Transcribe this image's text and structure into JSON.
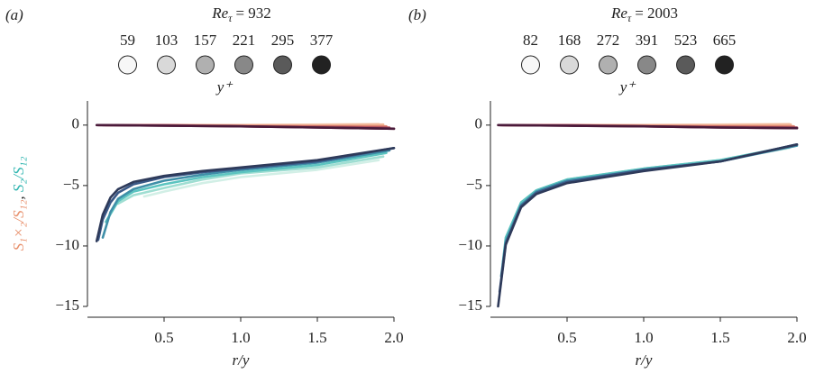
{
  "chart_data": [
    {
      "type": "line",
      "panel_label": "(a)",
      "title": {
        "symbol": "Re",
        "subscript": "τ",
        "text": "= 932"
      },
      "legend_title": "y⁺",
      "x_label": "r/y",
      "y_label": [
        {
          "text": "S₁×₂/S₁₂",
          "color": "#e8906c"
        },
        {
          "text": ", ",
          "color": "#222222"
        },
        {
          "text": "S₂/S₁₂",
          "color": "#2fb5b0"
        }
      ],
      "xlim": [
        0,
        2
      ],
      "ylim": [
        -15,
        2
      ],
      "xticks": [
        0.5,
        {
          "value": 1,
          "label": "1.0"
        },
        1.5,
        {
          "value": 2,
          "label": "2.0"
        }
      ],
      "yticks": [
        0,
        {
          "value": -5,
          "label": "−5"
        },
        {
          "value": -10,
          "label": "−10"
        },
        {
          "value": -15,
          "label": "−15"
        }
      ],
      "series": [
        {
          "name": "59",
          "color": "#f7f7f7",
          "lines": [
            {
              "color": "#f8d8c4",
              "x": [
                0.37,
                0.5,
                1.0,
                1.5,
                1.9
              ],
              "values": [
                0.0,
                0.0,
                0.0,
                0.05,
                0.1
              ]
            },
            {
              "color": "#d2efe6",
              "x": [
                0.37,
                0.5,
                0.75,
                1.0,
                1.5,
                1.9
              ],
              "values": [
                -5.9,
                -5.5,
                -4.8,
                -4.3,
                -3.7,
                -2.9
              ]
            }
          ]
        },
        {
          "name": "103",
          "color": "#d9d9d9",
          "lines": [
            {
              "color": "#f2b697",
              "x": [
                0.2,
                0.5,
                1.0,
                1.5,
                1.93
              ],
              "values": [
                0.0,
                0.0,
                0.0,
                0.0,
                0.05
              ]
            },
            {
              "color": "#9fded2",
              "x": [
                0.2,
                0.3,
                0.5,
                0.75,
                1.0,
                1.5,
                1.93
              ],
              "values": [
                -6.5,
                -5.8,
                -5.2,
                -4.5,
                -4.0,
                -3.5,
                -2.6
              ]
            }
          ]
        },
        {
          "name": "157",
          "color": "#b0b0b0",
          "lines": [
            {
              "color": "#de8670",
              "x": [
                0.12,
                0.5,
                1.0,
                1.5,
                1.95
              ],
              "values": [
                0.0,
                0.0,
                -0.05,
                -0.1,
                -0.1
              ]
            },
            {
              "color": "#5cc4c0",
              "x": [
                0.12,
                0.2,
                0.3,
                0.5,
                0.75,
                1.0,
                1.5,
                1.95
              ],
              "values": [
                -8.0,
                -6.3,
                -5.5,
                -4.9,
                -4.3,
                -3.9,
                -3.3,
                -2.3
              ]
            }
          ]
        },
        {
          "name": "221",
          "color": "#888888",
          "lines": [
            {
              "color": "#b4525e",
              "x": [
                0.1,
                0.5,
                1.0,
                1.5,
                1.97
              ],
              "values": [
                0.0,
                0.0,
                -0.1,
                -0.15,
                -0.2
              ]
            },
            {
              "color": "#3f8fa8",
              "x": [
                0.1,
                0.15,
                0.2,
                0.3,
                0.5,
                0.75,
                1.0,
                1.5,
                1.97
              ],
              "values": [
                -9.3,
                -7.2,
                -6.1,
                -5.3,
                -4.6,
                -4.1,
                -3.7,
                -3.1,
                -2.1
              ]
            }
          ]
        },
        {
          "name": "295",
          "color": "#5a5a5a",
          "lines": [
            {
              "color": "#7d3050",
              "x": [
                0.07,
                0.5,
                1.0,
                1.5,
                2.0
              ],
              "values": [
                0.0,
                -0.05,
                -0.1,
                -0.2,
                -0.3
              ]
            },
            {
              "color": "#3a5886",
              "x": [
                0.07,
                0.1,
                0.15,
                0.2,
                0.3,
                0.5,
                0.75,
                1.0,
                1.5,
                2.0
              ],
              "values": [
                -9.5,
                -7.8,
                -6.4,
                -5.6,
                -4.9,
                -4.3,
                -3.9,
                -3.6,
                -3.0,
                -1.9
              ]
            }
          ]
        },
        {
          "name": "377",
          "color": "#222222",
          "lines": [
            {
              "color": "#4a1a3a",
              "x": [
                0.06,
                0.5,
                1.0,
                1.5,
                2.0
              ],
              "values": [
                0.0,
                -0.05,
                -0.1,
                -0.2,
                -0.3
              ]
            },
            {
              "color": "#2e3a5a",
              "x": [
                0.06,
                0.1,
                0.15,
                0.2,
                0.3,
                0.5,
                0.75,
                1.0,
                1.5,
                2.0
              ],
              "values": [
                -9.6,
                -7.4,
                -6.0,
                -5.3,
                -4.7,
                -4.2,
                -3.8,
                -3.5,
                -2.9,
                -1.9
              ]
            }
          ]
        }
      ]
    },
    {
      "type": "line",
      "panel_label": "(b)",
      "title": {
        "symbol": "Re",
        "subscript": "τ",
        "text": "= 2003"
      },
      "legend_title": "y⁺",
      "x_label": "r/y",
      "xlim": [
        0,
        2
      ],
      "ylim": [
        -15,
        2
      ],
      "xticks": [
        0.5,
        {
          "value": 1,
          "label": "1.0"
        },
        1.5,
        {
          "value": 2,
          "label": "2.0"
        }
      ],
      "yticks": [
        0,
        {
          "value": -5,
          "label": "−5"
        },
        {
          "value": -10,
          "label": "−10"
        },
        {
          "value": -15,
          "label": "−15"
        }
      ],
      "series": [
        {
          "name": "82",
          "color": "#f7f7f7",
          "lines": [
            {
              "color": "#f8d8c4",
              "x": [
                0.12,
                0.5,
                1.0,
                1.5,
                1.95
              ],
              "values": [
                0.0,
                0.0,
                0.0,
                0.05,
                0.1
              ]
            },
            {
              "color": "#d2efe6",
              "x": [
                0.12,
                0.2,
                0.3,
                0.5,
                1.0,
                1.5,
                1.95
              ],
              "values": [
                -9.0,
                -6.4,
                -5.4,
                -4.5,
                -3.6,
                -2.9,
                -1.9
              ]
            }
          ]
        },
        {
          "name": "168",
          "color": "#d9d9d9",
          "lines": [
            {
              "color": "#f2b697",
              "x": [
                0.1,
                0.5,
                1.0,
                1.5,
                1.96
              ],
              "values": [
                0.0,
                0.0,
                0.0,
                0.0,
                0.05
              ]
            },
            {
              "color": "#9fded2",
              "x": [
                0.1,
                0.2,
                0.3,
                0.5,
                1.0,
                1.5,
                1.96
              ],
              "values": [
                -9.5,
                -6.4,
                -5.4,
                -4.5,
                -3.6,
                -2.9,
                -1.8
              ]
            }
          ]
        },
        {
          "name": "272",
          "color": "#b0b0b0",
          "lines": [
            {
              "color": "#de8670",
              "x": [
                0.08,
                0.5,
                1.0,
                1.5,
                1.98
              ],
              "values": [
                0.0,
                0.0,
                -0.05,
                -0.1,
                -0.1
              ]
            },
            {
              "color": "#5cc4c0",
              "x": [
                0.08,
                0.1,
                0.2,
                0.3,
                0.5,
                1.0,
                1.5,
                1.98
              ],
              "values": [
                -11.5,
                -9.3,
                -6.4,
                -5.4,
                -4.5,
                -3.6,
                -2.9,
                -1.7
              ]
            }
          ]
        },
        {
          "name": "391",
          "color": "#888888",
          "lines": [
            {
              "color": "#b4525e",
              "x": [
                0.07,
                0.5,
                1.0,
                1.5,
                2.0
              ],
              "values": [
                0.0,
                0.0,
                -0.1,
                -0.15,
                -0.2
              ]
            },
            {
              "color": "#3f8fa8",
              "x": [
                0.07,
                0.1,
                0.2,
                0.3,
                0.5,
                1.0,
                1.5,
                2.0
              ],
              "values": [
                -12.5,
                -9.6,
                -6.6,
                -5.5,
                -4.6,
                -3.7,
                -3.0,
                -1.7
              ]
            }
          ]
        },
        {
          "name": "523",
          "color": "#5a5a5a",
          "lines": [
            {
              "color": "#7d3050",
              "x": [
                0.06,
                0.5,
                1.0,
                1.5,
                2.0
              ],
              "values": [
                0.0,
                -0.05,
                -0.1,
                -0.2,
                -0.25
              ]
            },
            {
              "color": "#3a5886",
              "x": [
                0.06,
                0.1,
                0.2,
                0.3,
                0.5,
                1.0,
                1.5,
                2.0
              ],
              "values": [
                -13.8,
                -9.8,
                -6.7,
                -5.6,
                -4.7,
                -3.7,
                -3.0,
                -1.6
              ]
            }
          ]
        },
        {
          "name": "665",
          "color": "#222222",
          "lines": [
            {
              "color": "#4a1a3a",
              "x": [
                0.05,
                0.5,
                1.0,
                1.5,
                2.0
              ],
              "values": [
                0.0,
                -0.05,
                -0.1,
                -0.2,
                -0.25
              ]
            },
            {
              "color": "#2e3a5a",
              "x": [
                0.05,
                0.1,
                0.2,
                0.3,
                0.5,
                1.0,
                1.5,
                2.0
              ],
              "values": [
                -15,
                -9.9,
                -6.8,
                -5.7,
                -4.8,
                -3.8,
                -3.0,
                -1.6
              ]
            }
          ]
        }
      ]
    }
  ]
}
